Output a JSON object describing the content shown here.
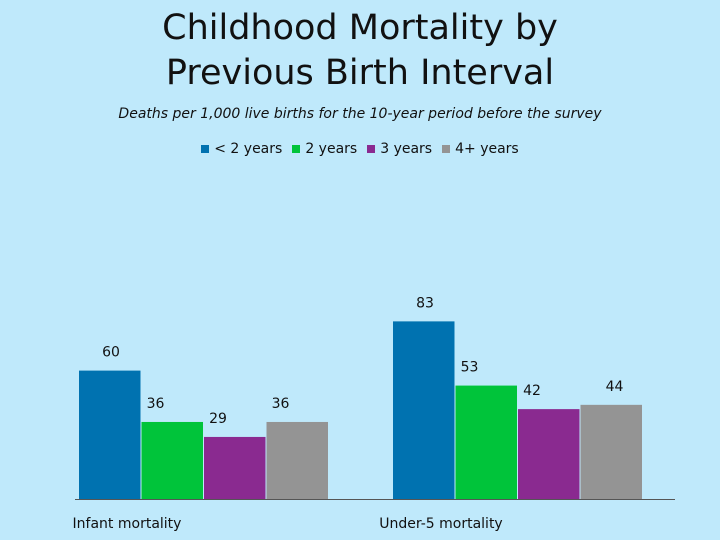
{
  "chart_data": {
    "type": "bar",
    "title_lines": [
      "Childhood Mortality by",
      "Previous Birth Interval"
    ],
    "subtitle": "Deaths per 1,000 live births for the 10-year period before the survey",
    "categories": [
      "Infant mortality",
      "Under-5 mortality"
    ],
    "series": [
      {
        "name": "< 2 years",
        "color": "#0072b0",
        "values": [
          60,
          83
        ]
      },
      {
        "name": "2 years",
        "color": "#00c43a",
        "values": [
          36,
          53
        ]
      },
      {
        "name": "3 years",
        "color": "#8a2a90",
        "values": [
          29,
          42
        ]
      },
      {
        "name": "4+ years",
        "color": "#949494",
        "values": [
          36,
          44
        ]
      }
    ],
    "xlabel": "",
    "ylabel": "",
    "ylim": [
      0,
      100
    ],
    "grid": false,
    "legend_position": "top-center"
  }
}
